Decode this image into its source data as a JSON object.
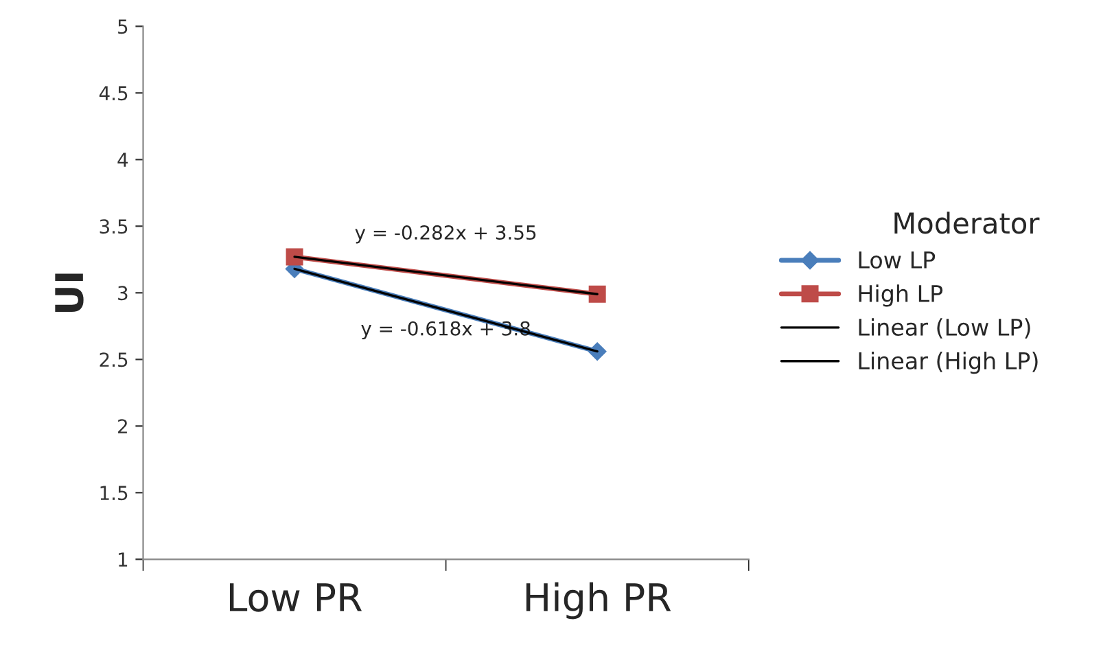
{
  "chart_data": {
    "type": "line",
    "ylabel": "UI",
    "legend_title": "Moderator",
    "categories": [
      "Low PR",
      "High PR"
    ],
    "series": [
      {
        "name": "Low LP",
        "color": "#4a7ebb",
        "values": [
          3.18,
          2.56
        ],
        "marker": "diamond"
      },
      {
        "name": "High LP",
        "color": "#be4b48",
        "values": [
          3.27,
          2.99
        ],
        "marker": "square"
      },
      {
        "name": "Linear (Low LP)",
        "color": "#000000",
        "values": [
          3.18,
          2.56
        ],
        "marker": "none"
      },
      {
        "name": "Linear (High LP)",
        "color": "#000000",
        "values": [
          3.27,
          2.99
        ],
        "marker": "none"
      }
    ],
    "annotations": [
      "y = -0.282x + 3.55",
      "y = -0.618x + 3.8"
    ],
    "ylim": [
      1,
      5
    ],
    "yticks": [
      1,
      1.5,
      2,
      2.5,
      3,
      3.5,
      4,
      4.5,
      5
    ],
    "grid": false,
    "legend": "right",
    "line_style": "solid"
  }
}
